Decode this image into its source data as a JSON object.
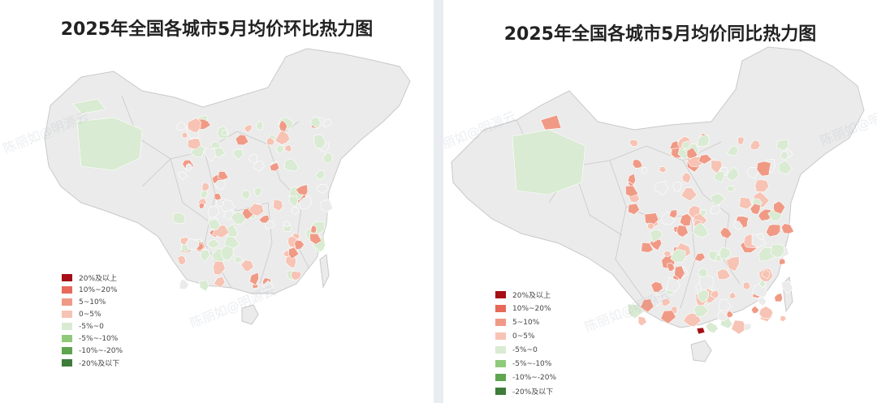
{
  "maps": [
    {
      "title": "2025年全国各城市5月均价环比热力图",
      "watermark": "陈丽如@明源云"
    },
    {
      "title": "2025年全国各城市5月均价同比热力图",
      "watermark": "陈丽如@明源云"
    }
  ],
  "legend": [
    {
      "label": "20%及以上",
      "color": "#a50f15"
    },
    {
      "label": "10%~20%",
      "color": "#e8685a"
    },
    {
      "label": "5~10%",
      "color": "#f09a86"
    },
    {
      "label": "0~5%",
      "color": "#f7c3b4"
    },
    {
      "label": "-5%~0",
      "color": "#d9ebd2"
    },
    {
      "label": "-5%~-10%",
      "color": "#8fca7a"
    },
    {
      "label": "-10%~-20%",
      "color": "#5ea54f"
    },
    {
      "label": "-20%及以下",
      "color": "#3e7c3a"
    }
  ],
  "colors": {
    "no_data": "#ebebeb",
    "border": "#c9c9c9"
  }
}
